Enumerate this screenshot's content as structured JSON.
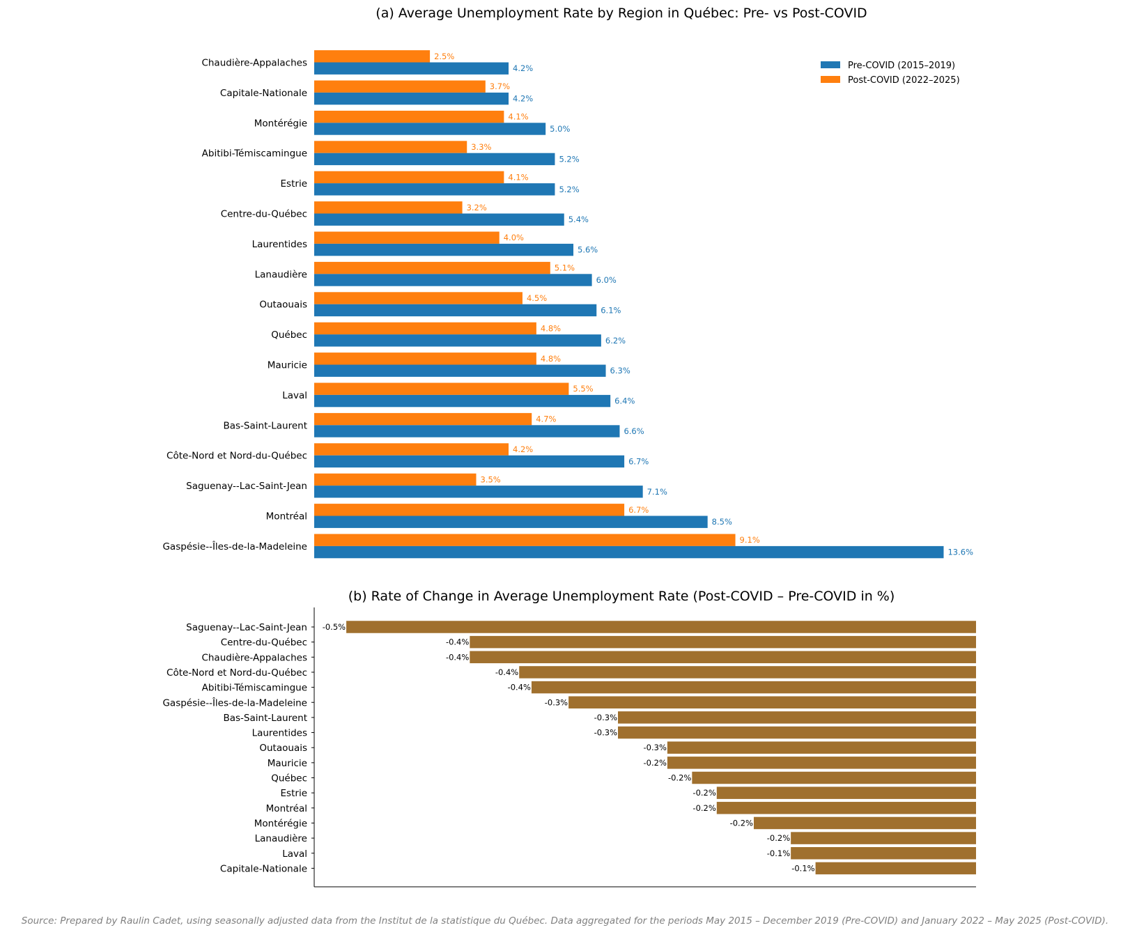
{
  "chart_data": [
    {
      "type": "bar",
      "orientation": "horizontal",
      "title": "(a) Average Unemployment Rate by Region in Québec: Pre- vs Post-COVID",
      "categories": [
        "Chaudière-Appalaches",
        "Capitale-Nationale",
        "Montérégie",
        "Abitibi-Témiscamingue",
        "Estrie",
        "Centre-du-Québec",
        "Laurentides",
        "Lanaudière",
        "Outaouais",
        "Québec",
        "Mauricie",
        "Laval",
        "Bas-Saint-Laurent",
        "Côte-Nord et Nord-du-Québec",
        "Saguenay--Lac-Saint-Jean",
        "Montréal",
        "Gaspésie--Îles-de-la-Madeleine"
      ],
      "series": [
        {
          "name": "Pre-COVID (2015–2019)",
          "color": "#1f77b4",
          "values": [
            4.2,
            4.2,
            5.0,
            5.2,
            5.2,
            5.4,
            5.6,
            6.0,
            6.1,
            6.2,
            6.3,
            6.4,
            6.6,
            6.7,
            7.1,
            8.5,
            13.6
          ],
          "labels": [
            "4.2%",
            "4.2%",
            "5.0%",
            "5.2%",
            "5.2%",
            "5.4%",
            "5.6%",
            "6.0%",
            "6.1%",
            "6.2%",
            "6.3%",
            "6.4%",
            "6.6%",
            "6.7%",
            "7.1%",
            "8.5%",
            "13.6%"
          ]
        },
        {
          "name": "Post-COVID (2022–2025)",
          "color": "#ff7f0e",
          "values": [
            2.5,
            3.7,
            4.1,
            3.3,
            4.1,
            3.2,
            4.0,
            5.1,
            4.5,
            4.8,
            4.8,
            5.5,
            4.7,
            4.2,
            3.5,
            6.7,
            9.1
          ],
          "labels": [
            "2.5%",
            "3.7%",
            "4.1%",
            "3.3%",
            "4.1%",
            "3.2%",
            "4.0%",
            "5.1%",
            "4.5%",
            "4.8%",
            "4.8%",
            "5.5%",
            "4.7%",
            "4.2%",
            "3.5%",
            "6.7%",
            "9.1%"
          ]
        }
      ],
      "xlim": [
        0,
        14.3
      ],
      "legend_position": "top-right",
      "grid": false
    },
    {
      "type": "bar",
      "orientation": "horizontal",
      "title": "(b) Rate of Change in Average Unemployment Rate (Post-COVID – Pre-COVID in %)",
      "categories": [
        "Saguenay--Lac-Saint-Jean",
        "Centre-du-Québec",
        "Chaudière-Appalaches",
        "Côte-Nord et Nord-du-Québec",
        "Abitibi-Témiscamingue",
        "Gaspésie--Îles-de-la-Madeleine",
        "Bas-Saint-Laurent",
        "Laurentides",
        "Outaouais",
        "Mauricie",
        "Québec",
        "Estrie",
        "Montréal",
        "Montérégie",
        "Lanaudière",
        "Laval",
        "Capitale-Nationale"
      ],
      "series": [
        {
          "name": "",
          "color": "#a0702e",
          "values": [
            -0.51,
            -0.41,
            -0.41,
            -0.37,
            -0.36,
            -0.33,
            -0.29,
            -0.29,
            -0.25,
            -0.25,
            -0.23,
            -0.21,
            -0.21,
            -0.18,
            -0.15,
            -0.15,
            -0.13
          ],
          "labels": [
            "-0.5%",
            "-0.4%",
            "-0.4%",
            "-0.4%",
            "-0.4%",
            "-0.3%",
            "-0.3%",
            "-0.3%",
            "-0.3%",
            "-0.2%",
            "-0.2%",
            "-0.2%",
            "-0.2%",
            "-0.2%",
            "-0.2%",
            "-0.1%",
            "-0.1%"
          ]
        }
      ],
      "xlim": [
        -0.536,
        0
      ],
      "grid": false
    }
  ],
  "source_note": "Source: Prepared by Raulin Cadet, using seasonally adjusted data from the Institut de la statistique du Québec. Data aggregated for the periods May 2015 – December 2019 (Pre-COVID) and January 2022 – May 2025 (Post-COVID)."
}
